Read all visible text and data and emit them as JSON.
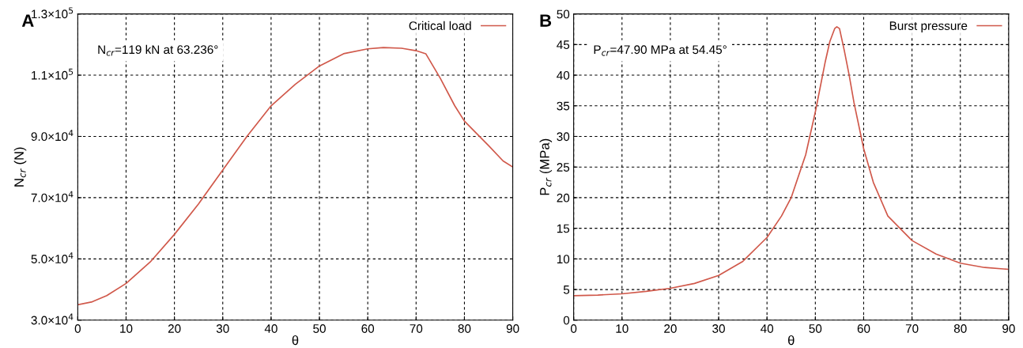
{
  "chart_data": [
    {
      "type": "line",
      "title": "A",
      "xlabel": "θ",
      "ylabel": "N$_{cr}$ (N)",
      "annotations": [
        "N$_{cr}$=119 kN at 63.236°"
      ],
      "series": [
        {
          "name": "Critical load",
          "color": "#d0584a",
          "x": [
            0,
            3,
            6,
            10,
            15,
            20,
            25,
            30,
            35,
            40,
            45,
            50,
            55,
            60,
            63.236,
            67,
            70,
            72,
            75,
            78,
            80,
            85,
            88,
            90
          ],
          "values": [
            35000,
            36000,
            38000,
            42000,
            49000,
            58000,
            68000,
            79000,
            90000,
            100000,
            107000,
            113000,
            117000,
            118600,
            119000,
            118800,
            118000,
            117000,
            109000,
            100000,
            95000,
            87000,
            82000,
            80000
          ]
        }
      ],
      "xlim": [
        0,
        90
      ],
      "xticks": [
        0,
        10,
        20,
        30,
        40,
        50,
        60,
        70,
        80,
        90
      ],
      "ylim": [
        30000,
        130000
      ],
      "yticks": [
        {
          "value": 30000,
          "label": "3.0×10$^{4}$"
        },
        {
          "value": 50000,
          "label": "5.0×10$^{4}$"
        },
        {
          "value": 70000,
          "label": "7.0×10$^{4}$"
        },
        {
          "value": 90000,
          "label": "9.0×10$^{4}$"
        },
        {
          "value": 110000,
          "label": "1.1×10$^{5}$"
        },
        {
          "value": 130000,
          "label": "1.3×10$^{5}$"
        }
      ],
      "grid": true,
      "legend": "top right",
      "line_style": "solid"
    },
    {
      "type": "line",
      "title": "B",
      "xlabel": "θ",
      "ylabel": "P$_{cr}$ (MPa)",
      "annotations": [
        "P$_{cr}$=47.90 MPa at 54.45°"
      ],
      "series": [
        {
          "name": "Burst pressure",
          "color": "#d0584a",
          "x": [
            0,
            5,
            10,
            15,
            20,
            25,
            30,
            35,
            40,
            43,
            45,
            48,
            50,
            52,
            53,
            54,
            54.45,
            55,
            56,
            57,
            58,
            60,
            62,
            65,
            70,
            75,
            80,
            85,
            90
          ],
          "values": [
            4.0,
            4.1,
            4.3,
            4.7,
            5.2,
            6.0,
            7.3,
            9.6,
            13.5,
            17.0,
            20.0,
            27.0,
            34.0,
            42.0,
            45.5,
            47.6,
            47.9,
            47.6,
            44.0,
            40.0,
            35.5,
            28.0,
            22.5,
            17.0,
            13.0,
            10.8,
            9.3,
            8.6,
            8.3
          ]
        }
      ],
      "xlim": [
        0,
        90
      ],
      "xticks": [
        0,
        10,
        20,
        30,
        40,
        50,
        60,
        70,
        80,
        90
      ],
      "ylim": [
        0,
        50
      ],
      "yticks": [
        0,
        5,
        10,
        15,
        20,
        25,
        30,
        35,
        40,
        45,
        50
      ],
      "grid": true,
      "legend": "top right",
      "line_style": "solid"
    }
  ]
}
